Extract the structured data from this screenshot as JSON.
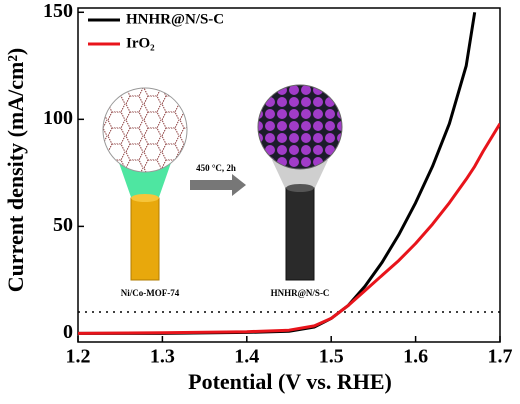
{
  "chart_data": {
    "type": "line",
    "xlabel": "Potential (V vs. RHE)",
    "ylabel": "Current density (mA/cm²)",
    "x": [
      1.2,
      1.3,
      1.4,
      1.45,
      1.48,
      1.5,
      1.52,
      1.54,
      1.56,
      1.58,
      1.6,
      1.62,
      1.64,
      1.66,
      1.67,
      1.68,
      1.7
    ],
    "series": [
      {
        "name": "HNHR@N/S-C",
        "color": "#000000",
        "values": [
          0,
          0,
          0.5,
          1,
          3,
          7,
          13,
          22,
          33,
          46,
          61,
          78,
          98,
          125,
          150,
          null,
          null
        ]
      },
      {
        "name": "IrO₂",
        "color": "#e8141b",
        "values": [
          0,
          0.3,
          0.8,
          1.5,
          3.5,
          7,
          13,
          20,
          27,
          34,
          42,
          51,
          61,
          72,
          78,
          85,
          98
        ]
      }
    ],
    "xlim": [
      1.2,
      1.7
    ],
    "xticks": [
      1.2,
      1.3,
      1.4,
      1.5,
      1.6,
      1.7
    ],
    "ylim": [
      -4,
      152
    ],
    "yticks": [
      0,
      50,
      100,
      150
    ],
    "reference_line": 10,
    "legend": "upper left",
    "annotations": [
      "Ni/Co-MOF-74",
      "450 °C, 2h",
      "HNHR@N/S-C"
    ]
  }
}
